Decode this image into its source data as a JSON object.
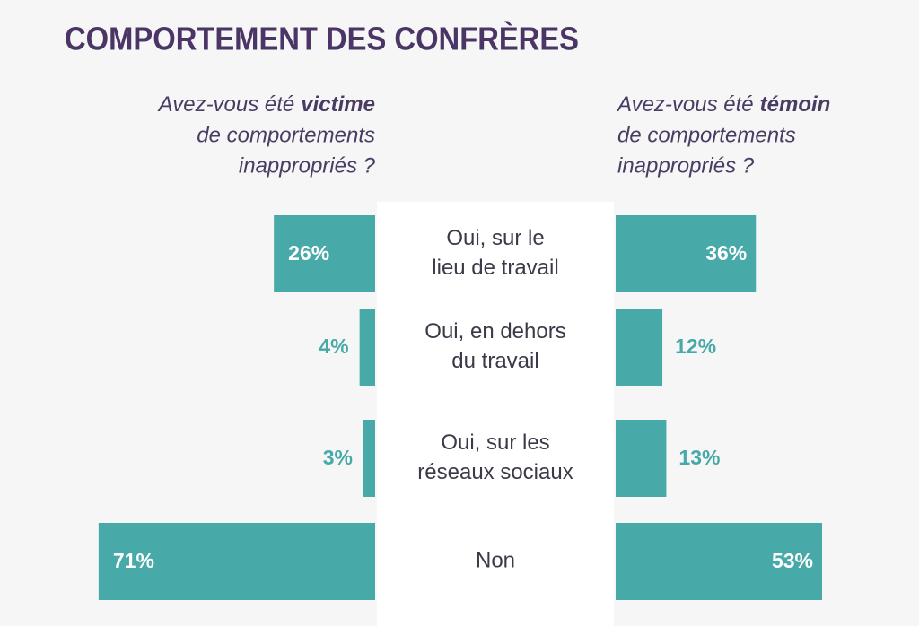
{
  "chart_data": {
    "type": "bar",
    "title": "COMPORTEMENT DES CONFRÈRES",
    "categories": [
      [
        "Oui, sur le",
        "lieu de travail"
      ],
      [
        "Oui, en dehors",
        "du travail"
      ],
      [
        "Oui, sur les",
        "réseaux sociaux"
      ],
      [
        "Non"
      ]
    ],
    "series": [
      {
        "question": {
          "start": "Avez-vous été",
          "bold": "victime",
          "lines": [
            "de comportements",
            "inappropriés ?"
          ]
        },
        "color": "#47a9a8",
        "values": [
          26,
          4,
          3,
          71
        ],
        "value_labels": [
          "26%",
          "4%",
          "3%",
          "71%"
        ]
      },
      {
        "question": {
          "start": "Avez-vous été",
          "bold": "témoin",
          "lines": [
            "de comportements",
            "inappropriés ?"
          ]
        },
        "color": "#47a9a8",
        "values": [
          36,
          12,
          13,
          53
        ],
        "value_labels": [
          "36%",
          "12%",
          "13%",
          "53%"
        ]
      }
    ]
  }
}
